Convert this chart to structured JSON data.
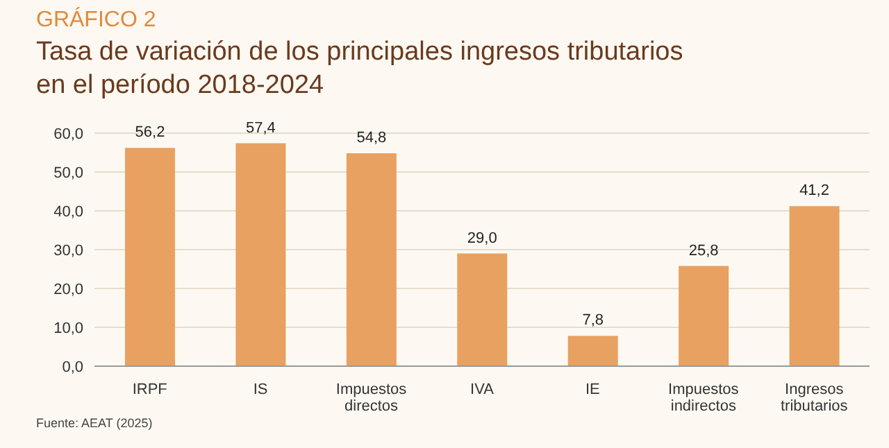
{
  "chart_data": {
    "type": "bar",
    "title": "GRÁFICO 2",
    "subtitle": "Tasa de variación de los principales ingresos tributarios en el período 2018-2024",
    "categories": [
      "IRPF",
      "IS",
      "Impuestos directos",
      "IVA",
      "IE",
      "Impuestos indirectos",
      "Ingresos tributarios"
    ],
    "values": [
      56.2,
      57.4,
      54.8,
      29.0,
      7.8,
      25.8,
      41.2
    ],
    "value_labels": [
      "56,2",
      "57,4",
      "54,8",
      "29,0",
      "7,8",
      "25,8",
      "41,2"
    ],
    "color": "#e8a160",
    "ylim": [
      0,
      60
    ],
    "yticks": [
      {
        "value": 0,
        "label": "0,0"
      },
      {
        "value": 10,
        "label": "10,0"
      },
      {
        "value": 20,
        "label": "20,0"
      },
      {
        "value": 30,
        "label": "30,0"
      },
      {
        "value": 40,
        "label": "40,0"
      },
      {
        "value": 50,
        "label": "50,0"
      },
      {
        "value": 60,
        "label": "60,0"
      }
    ],
    "grid": "y",
    "annotations": [
      "Fuente: AEAT (2025)"
    ]
  }
}
